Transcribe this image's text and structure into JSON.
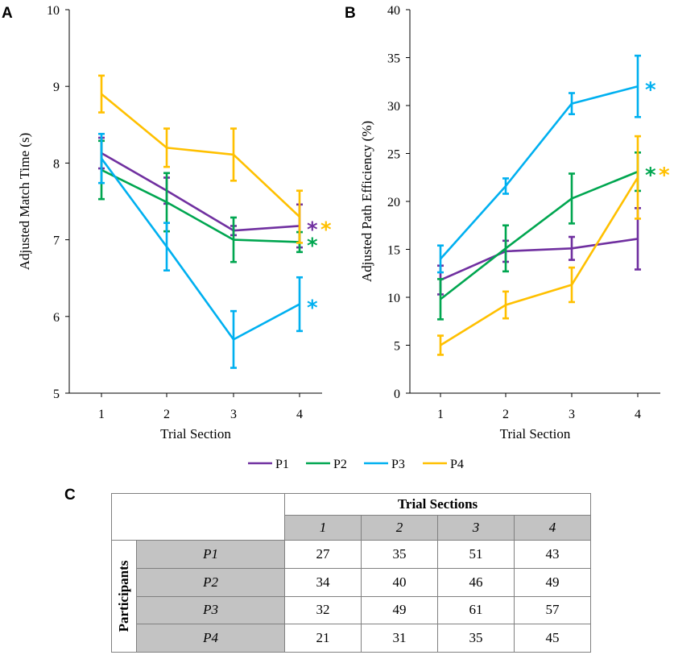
{
  "panels": {
    "a": "A",
    "b": "B",
    "c": "C"
  },
  "legend": [
    {
      "name": "P1",
      "color": "#7030a0"
    },
    {
      "name": "P2",
      "color": "#00a650"
    },
    {
      "name": "P3",
      "color": "#00b0f0"
    },
    {
      "name": "P4",
      "color": "#ffc000"
    }
  ],
  "chart_data": [
    {
      "type": "line",
      "panel": "A",
      "title": "",
      "xlabel": "Trial Section",
      "ylabel": "Adjusted Match Time (s)",
      "categories": [
        "1",
        "2",
        "3",
        "4"
      ],
      "ylim": [
        5,
        10
      ],
      "yticks": [
        "5",
        "6",
        "7",
        "8",
        "9",
        "10"
      ],
      "series": [
        {
          "name": "P1",
          "color": "#7030a0",
          "values": [
            8.13,
            7.64,
            7.12,
            7.18
          ],
          "err": [
            0.2,
            0.17,
            0.06,
            0.28
          ],
          "star": "*"
        },
        {
          "name": "P2",
          "color": "#00a650",
          "values": [
            7.91,
            7.49,
            7.0,
            6.97
          ],
          "err": [
            0.38,
            0.38,
            0.29,
            0.13
          ],
          "star": "*"
        },
        {
          "name": "P3",
          "color": "#00b0f0",
          "values": [
            8.06,
            6.91,
            5.7,
            6.16
          ],
          "err": [
            0.32,
            0.31,
            0.37,
            0.35
          ],
          "star": "*"
        },
        {
          "name": "P4",
          "color": "#ffc000",
          "values": [
            8.9,
            8.2,
            8.11,
            7.3
          ],
          "err": [
            0.24,
            0.25,
            0.34,
            0.34
          ],
          "star": "*"
        }
      ],
      "annotations": [
        {
          "category": "4",
          "after": "P1",
          "stars": [
            "P1",
            "P4"
          ]
        },
        {
          "category": "4",
          "after": "P2",
          "stars": [
            "P2"
          ]
        },
        {
          "category": "4",
          "after": "P3",
          "stars": [
            "P3"
          ]
        }
      ]
    },
    {
      "type": "line",
      "panel": "B",
      "title": "",
      "xlabel": "Trial Section",
      "ylabel": "Adjusted Path Efficiency (%)",
      "categories": [
        "1",
        "2",
        "3",
        "4"
      ],
      "ylim": [
        0,
        40
      ],
      "yticks": [
        "0",
        "5",
        "10",
        "15",
        "20",
        "25",
        "30",
        "35",
        "40"
      ],
      "series": [
        {
          "name": "P1",
          "color": "#7030a0",
          "values": [
            11.8,
            14.8,
            15.1,
            16.1
          ],
          "err": [
            1.5,
            1.1,
            1.2,
            3.2
          ]
        },
        {
          "name": "P2",
          "color": "#00a650",
          "values": [
            9.8,
            15.1,
            20.3,
            23.1
          ],
          "err": [
            2.1,
            2.4,
            2.6,
            2.0
          ]
        },
        {
          "name": "P3",
          "color": "#00b0f0",
          "values": [
            14.0,
            21.6,
            30.2,
            32.0
          ],
          "err": [
            1.4,
            0.8,
            1.1,
            3.2
          ]
        },
        {
          "name": "P4",
          "color": "#ffc000",
          "values": [
            5.0,
            9.2,
            11.3,
            22.5
          ],
          "err": [
            1.0,
            1.4,
            1.8,
            4.3
          ]
        }
      ],
      "annotations": [
        {
          "category": "4",
          "after": "P3",
          "stars": [
            "P3"
          ]
        },
        {
          "category": "4",
          "after": "P2",
          "stars": [
            "P2",
            "P4"
          ]
        }
      ]
    },
    {
      "type": "table",
      "panel": "C",
      "group_header": "Trial Sections",
      "row_group_header": "Participants",
      "columns": [
        "1",
        "2",
        "3",
        "4"
      ],
      "rows": [
        {
          "label": "P1",
          "values": [
            "27",
            "35",
            "51",
            "43"
          ]
        },
        {
          "label": "P2",
          "values": [
            "34",
            "40",
            "46",
            "49"
          ]
        },
        {
          "label": "P3",
          "values": [
            "32",
            "49",
            "61",
            "57"
          ]
        },
        {
          "label": "P4",
          "values": [
            "21",
            "31",
            "35",
            "45"
          ]
        }
      ]
    }
  ]
}
